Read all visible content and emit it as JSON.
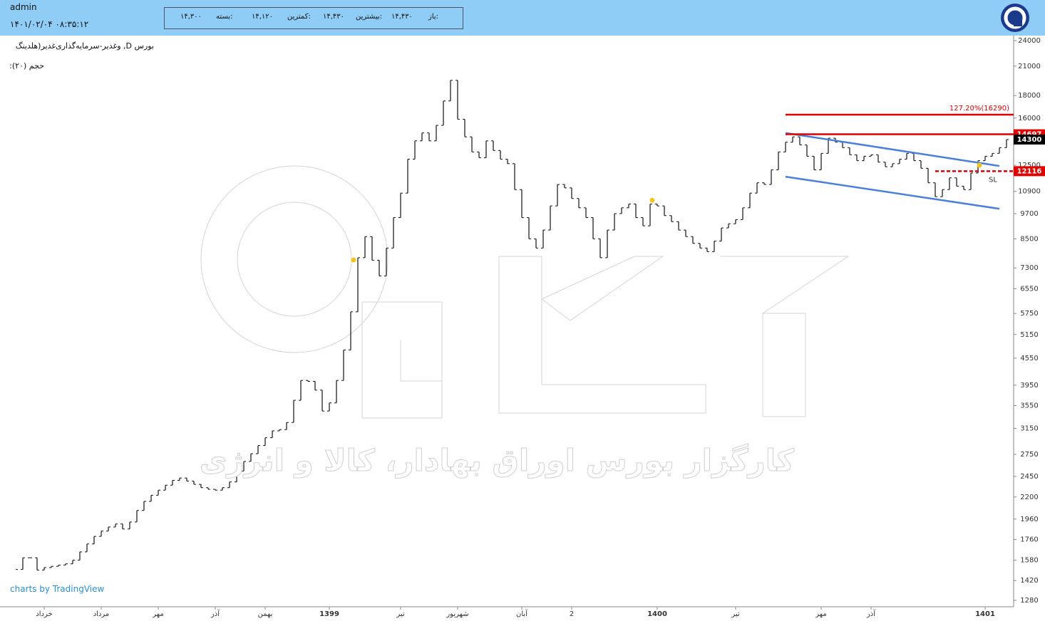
{
  "header": {
    "user": "admin",
    "datetime": "۱۴۰۱/۰۲/۰۴ ۰۸:۳۵:۱۲",
    "ohlc": [
      {
        "label": "باز:",
        "value": "۱۴,۴۳۰"
      },
      {
        "label": "بیشترین:",
        "value": "۱۴,۴۳۰"
      },
      {
        "label": "کمترین:",
        "value": "۱۴,۱۲۰"
      },
      {
        "label": "بسته:",
        "value": "۱۴,۳۰۰"
      }
    ]
  },
  "symbol": "بورس D, وغدیر-سرمایه‌گذاری‌غدیر(هلدینگ",
  "volume_label": "حجم (۲۰):",
  "attribution": "charts by TradingView",
  "watermark": "کارگزار بورس اوراق بهادار، کالا و انرژی",
  "chart_data": {
    "type": "stock",
    "log_scale": true,
    "ylim": [
      1238,
      24640
    ],
    "yticks": [
      1280,
      1420,
      1580,
      1760,
      1960,
      2200,
      2450,
      2750,
      3150,
      3550,
      3950,
      4550,
      5150,
      5750,
      6550,
      7300,
      8500,
      9700,
      10900,
      12500,
      16000,
      18000,
      21000,
      24000
    ],
    "categories": [
      null,
      null,
      null,
      null,
      "خرداد",
      null,
      null,
      null,
      null,
      null,
      null,
      null,
      "مرداد",
      null,
      null,
      null,
      null,
      null,
      null,
      null,
      "مهر",
      null,
      null,
      null,
      null,
      null,
      null,
      null,
      "آذر",
      null,
      null,
      null,
      null,
      null,
      null,
      "بهمن",
      null,
      null,
      null,
      null,
      null,
      null,
      null,
      null,
      "1399",
      null,
      null,
      null,
      null,
      null,
      null,
      null,
      null,
      null,
      "تیر",
      null,
      null,
      null,
      null,
      null,
      null,
      null,
      "شهریور",
      null,
      null,
      null,
      null,
      null,
      null,
      null,
      null,
      "آبان",
      null,
      null,
      null,
      null,
      null,
      null,
      "2",
      null,
      null,
      null,
      null,
      null,
      null,
      null,
      null,
      null,
      null,
      null,
      "1400",
      null,
      null,
      null,
      null,
      null,
      null,
      null,
      null,
      null,
      null,
      "تیر",
      null,
      null,
      null,
      null,
      null,
      null,
      null,
      null,
      null,
      null,
      null,
      "مهر",
      null,
      null,
      null,
      null,
      null,
      null,
      "آذر",
      null,
      null,
      null,
      null,
      null,
      null,
      null,
      null,
      null,
      null,
      null,
      null,
      null,
      null,
      null,
      "1401",
      null,
      null,
      null
    ],
    "series": [
      {
        "color": "#111111",
        "values": [
          1505,
          1600,
          1600,
          1500,
          1520,
          1530,
          1540,
          1550,
          1580,
          1650,
          1720,
          1790,
          1840,
          1880,
          1910,
          1860,
          1930,
          2050,
          2150,
          2220,
          2280,
          2340,
          2400,
          2430,
          2390,
          2350,
          2310,
          2290,
          2280,
          2310,
          2380,
          2520,
          2650,
          2760,
          2880,
          3000,
          3110,
          3130,
          3250,
          3650,
          4050,
          4030,
          3850,
          3450,
          3600,
          4050,
          4750,
          5800,
          7700,
          8600,
          7600,
          7000,
          8100,
          9500,
          10800,
          12900,
          14200,
          14800,
          14200,
          15400,
          17500,
          19500,
          15900,
          14500,
          13400,
          13000,
          14200,
          13500,
          12900,
          12600,
          11000,
          9500,
          8500,
          8100,
          8900,
          10100,
          11300,
          11100,
          10500,
          10000,
          9500,
          8500,
          7700,
          8900,
          9700,
          10000,
          10200,
          9500,
          9100,
          10200,
          10100,
          9600,
          9300,
          8900,
          8600,
          8300,
          8100,
          7950,
          8400,
          9000,
          9200,
          9400,
          10000,
          10800,
          11400,
          11300,
          12200,
          13400,
          14100,
          14500,
          13900,
          13100,
          12200,
          13300,
          14400,
          14100,
          13700,
          13200,
          12800,
          13100,
          13200,
          12700,
          12400,
          12600,
          12900,
          13300,
          12800,
          12300,
          11400,
          10600,
          11000,
          11700,
          11200,
          11000,
          12000,
          12800,
          13100,
          13300,
          13700,
          14300
        ]
      }
    ],
    "last_price": 14300,
    "levels": [
      {
        "value": 16290,
        "label": "127.20%(16290)",
        "x_from": 108,
        "color": "#e00000"
      },
      {
        "value": 14697,
        "label": "14697",
        "x_from": 108,
        "color": "#e00000"
      },
      {
        "value": 12116,
        "label": "12116",
        "x_from": 129,
        "color": "#e00000",
        "style": "dashed"
      }
    ],
    "trendlines": [
      {
        "x": [
          108,
          138
        ],
        "y": [
          14800,
          12450
        ],
        "color": "#4a7fdc"
      },
      {
        "x": [
          108,
          138
        ],
        "y": [
          11770,
          9950
        ],
        "color": "#4a7fdc"
      }
    ],
    "markers": {
      "x": [
        47.4,
        89.3,
        135.2
      ],
      "y": [
        7610,
        10400,
        12500
      ],
      "color": "#f2c318"
    },
    "annotation": "SL"
  }
}
